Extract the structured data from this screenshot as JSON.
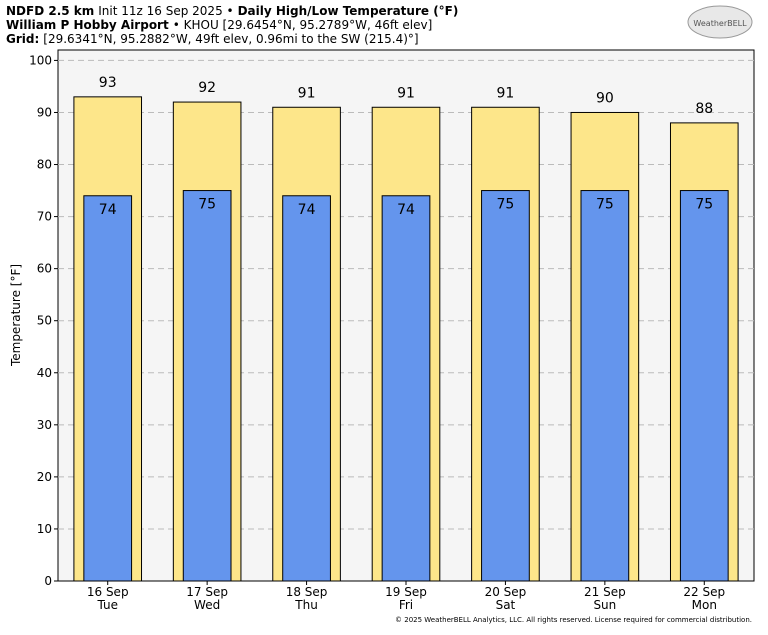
{
  "chart_data": {
    "type": "bar",
    "header": {
      "line1": [
        "NDFD 2.5 km",
        "Init 11z 16 Sep 2025 •",
        "Daily High/Low Temperature (°F)"
      ],
      "line2": [
        "William P Hobby Airport",
        "• KHOU [29.6454°N, 95.2789°W, 46ft elev]"
      ],
      "line3": [
        "Grid:",
        "[29.6341°N, 95.2882°W, 49ft elev, 0.96mi to the SW (215.4)°]"
      ]
    },
    "logo": "WeatherBELL",
    "footer": "© 2025 WeatherBELL Analytics, LLC. All rights reserved. License required for commercial distribution.",
    "y_label": "Temperature [°F]",
    "categories": [
      "16 Sep",
      "17 Sep",
      "18 Sep",
      "19 Sep",
      "20 Sep",
      "21 Sep",
      "22 Sep"
    ],
    "weekdays": [
      "Tue",
      "Wed",
      "Thu",
      "Fri",
      "Sat",
      "Sun",
      "Mon"
    ],
    "series": [
      {
        "name": "High",
        "color": "#fde68a",
        "values": [
          93,
          92,
          91,
          91,
          91,
          90,
          88
        ]
      },
      {
        "name": "Low",
        "color": "#6495ed",
        "values": [
          74,
          75,
          74,
          74,
          75,
          75,
          75
        ]
      }
    ],
    "ylim": [
      0,
      102
    ],
    "yticks": [
      0,
      10,
      20,
      30,
      40,
      50,
      60,
      70,
      80,
      90,
      100
    ],
    "grid": true
  }
}
